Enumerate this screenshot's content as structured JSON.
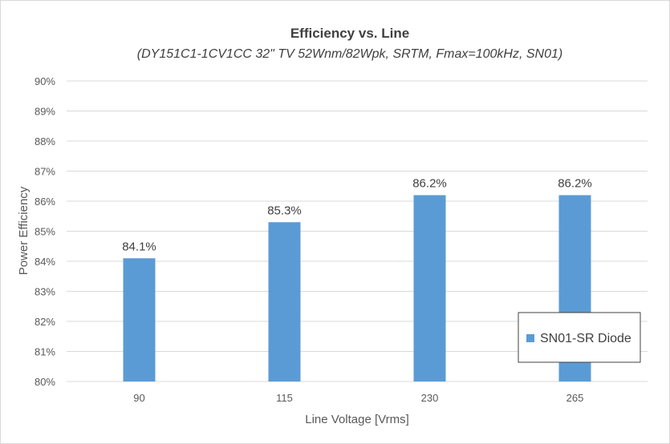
{
  "chart_data": {
    "type": "bar",
    "title": "Efficiency vs. Line",
    "subtitle": "(DY151C1-1CV1CC 32\" TV 52Wnm/82Wpk, SRTM, Fmax=100kHz, SN01)",
    "xlabel": "Line Voltage [Vrms]",
    "ylabel": "Power Efficiency",
    "categories": [
      "90",
      "115",
      "230",
      "265"
    ],
    "series": [
      {
        "name": "SN01-SR Diode",
        "values": [
          84.1,
          85.3,
          86.2,
          86.2
        ],
        "labels": [
          "84.1%",
          "85.3%",
          "86.2%",
          "86.2%"
        ],
        "color": "#5b9bd5"
      }
    ],
    "ylim": [
      80,
      90
    ],
    "yticks": [
      "80%",
      "81%",
      "82%",
      "83%",
      "84%",
      "85%",
      "86%",
      "87%",
      "88%",
      "89%",
      "90%"
    ],
    "grid": true,
    "legend_position": "bottom-right"
  }
}
